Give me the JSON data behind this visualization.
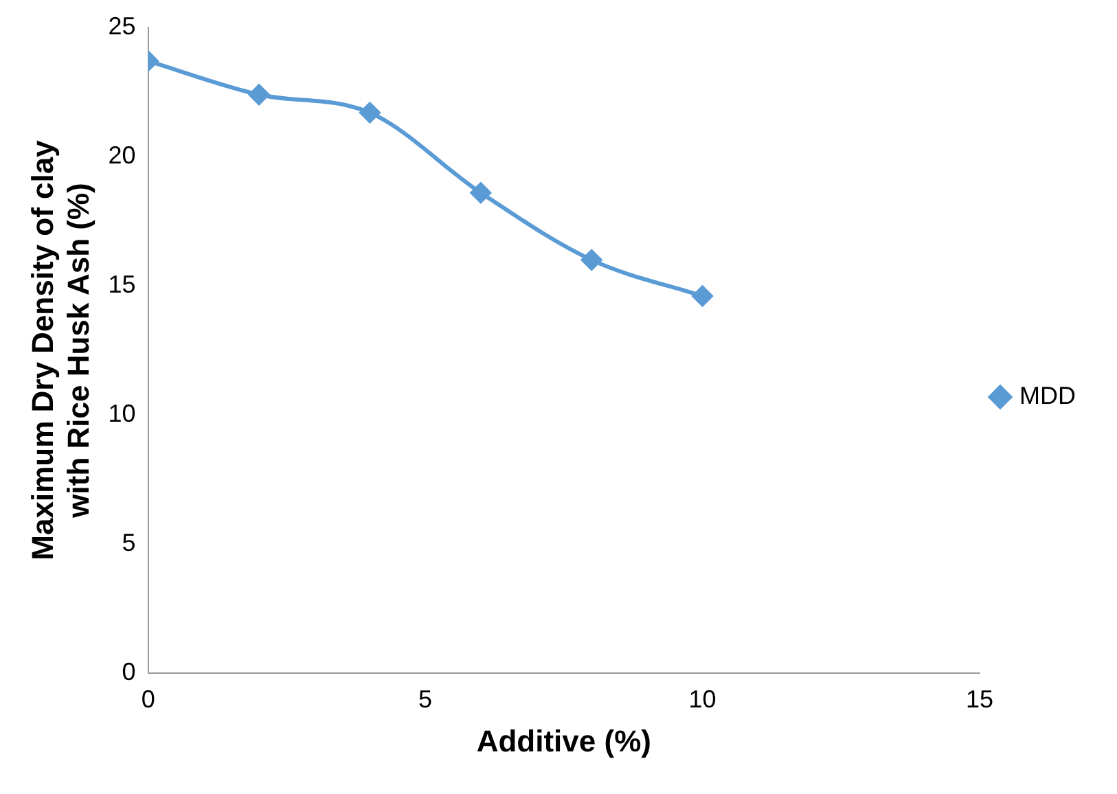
{
  "chart_data": {
    "type": "line",
    "xlabel": "Additive (%)",
    "ylabel": "Maximum Dry Density of clay with Rice Husk Ash (%)",
    "x": [
      0,
      2,
      4,
      6,
      8,
      10
    ],
    "series": [
      {
        "name": "MDD",
        "color": "#5b9bd5",
        "values": [
          23.7,
          22.4,
          21.7,
          18.6,
          16.0,
          14.6
        ]
      }
    ],
    "xlim": [
      0,
      15
    ],
    "xticks": [
      0,
      5,
      10,
      15
    ],
    "ylim": [
      0,
      25
    ],
    "yticks": [
      0,
      5,
      10,
      15,
      20,
      25
    ],
    "grid": false,
    "legend": "right",
    "marker": "diamond",
    "line_style": "solid"
  }
}
